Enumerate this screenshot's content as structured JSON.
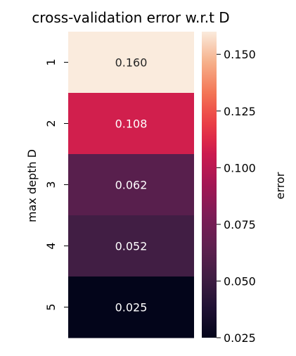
{
  "chart_data": {
    "type": "heatmap",
    "title": "cross-validation error w.r.t D",
    "ylabel": "max depth D",
    "xlabel": "",
    "rows": [
      "1",
      "2",
      "3",
      "4",
      "5"
    ],
    "values": [
      0.16,
      0.108,
      0.062,
      0.052,
      0.025
    ],
    "cell_labels": [
      "0.160",
      "0.108",
      "0.062",
      "0.052",
      "0.025"
    ],
    "colorbar": {
      "label": "error",
      "range": [
        0.025,
        0.16
      ],
      "ticks": [
        0.025,
        0.05,
        0.075,
        0.1,
        0.125,
        0.15
      ],
      "tick_labels": [
        "0.025",
        "0.050",
        "0.075",
        "0.100",
        "0.125",
        "0.150"
      ],
      "colormap": "rocket"
    },
    "grid": false,
    "legend": "colorbar-right"
  }
}
